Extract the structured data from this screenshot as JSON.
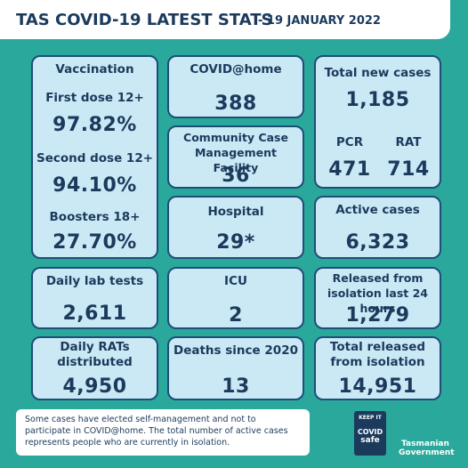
{
  "header": {
    "title": "TAS COVID-19 LATEST STATS",
    "date": "- 19 JANUARY 2022"
  },
  "vaccination": {
    "title": "Vaccination",
    "items": [
      {
        "label": "First dose 12+",
        "value": "97.82%"
      },
      {
        "label": "Second dose 12+",
        "value": "94.10%"
      },
      {
        "label": "Boosters 18+",
        "value": "27.70%"
      }
    ]
  },
  "lab_tests": {
    "label": "Daily lab tests",
    "value": "2,611"
  },
  "rats": {
    "label": "Daily RATs distributed",
    "value": "4,950"
  },
  "covid_home": {
    "label": "COVID@home",
    "value": "388"
  },
  "community": {
    "label": "Community Case Management Facility",
    "value": "36"
  },
  "hospital": {
    "label": "Hospital",
    "value": "29*"
  },
  "icu": {
    "label": "ICU",
    "value": "2"
  },
  "deaths": {
    "label": "Deaths since 2020",
    "value": "13"
  },
  "new_cases": {
    "label": "Total new cases",
    "value": "1,185",
    "pcr_label": "PCR",
    "pcr": "471",
    "rat_label": "RAT",
    "rat": "714"
  },
  "active": {
    "label": "Active cases",
    "value": "6,323"
  },
  "released_24": {
    "label": "Released from isolation last 24 hours",
    "value": "1,279"
  },
  "released_total": {
    "label": "Total released from isolation",
    "value": "14,951"
  },
  "footer": {
    "note": "Some cases have elected self-management and not to participate in COVID@home. The total number of active cases represents people who are currently in isolation.",
    "badge_top": "KEEP IT",
    "badge_mid": "COVID",
    "badge_bot": "safe",
    "gov": "Tasmanian Government"
  }
}
